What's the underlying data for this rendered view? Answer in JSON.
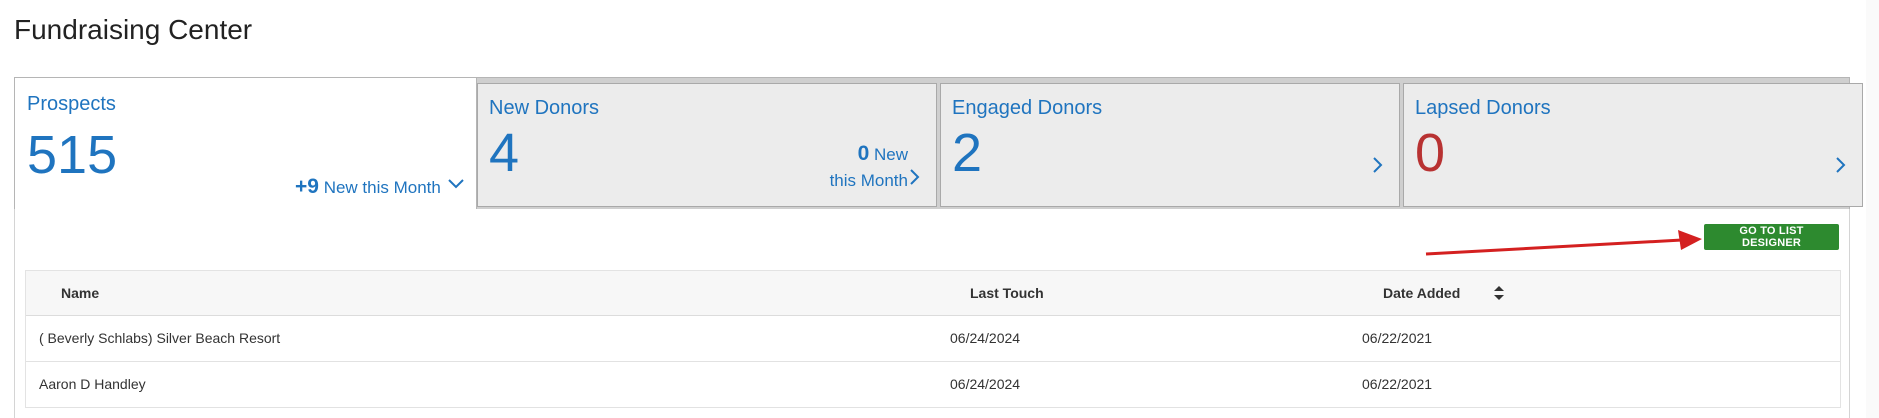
{
  "page": {
    "title": "Fundraising Center"
  },
  "cards": [
    {
      "title": "Prospects",
      "value": "515",
      "delta": "+9",
      "delta_text": "New this Month",
      "active": true
    },
    {
      "title": "New Donors",
      "value": "4",
      "delta": "0",
      "delta_text_1": "New",
      "delta_text_2": "this Month"
    },
    {
      "title": "Engaged Donors",
      "value": "2"
    },
    {
      "title": "Lapsed Donors",
      "value": "0"
    }
  ],
  "toolbar": {
    "designer_label": "GO TO LIST DESIGNER"
  },
  "table": {
    "columns": [
      "Name",
      "Last Touch",
      "Date Added"
    ],
    "rows": [
      {
        "name": "( Beverly Schlabs) Silver Beach Resort",
        "last_touch": "06/24/2024",
        "date_added": "06/22/2021"
      },
      {
        "name": "Aaron D Handley",
        "last_touch": "06/24/2024",
        "date_added": "06/22/2021"
      }
    ]
  },
  "colors": {
    "accent": "#1f74bf",
    "button": "#2d8a2f",
    "danger": "#b83232",
    "arrow": "#d42020"
  },
  "icons": [
    "chevron-down-icon",
    "chevron-right-icon",
    "sort-icon",
    "annotation-arrow"
  ]
}
